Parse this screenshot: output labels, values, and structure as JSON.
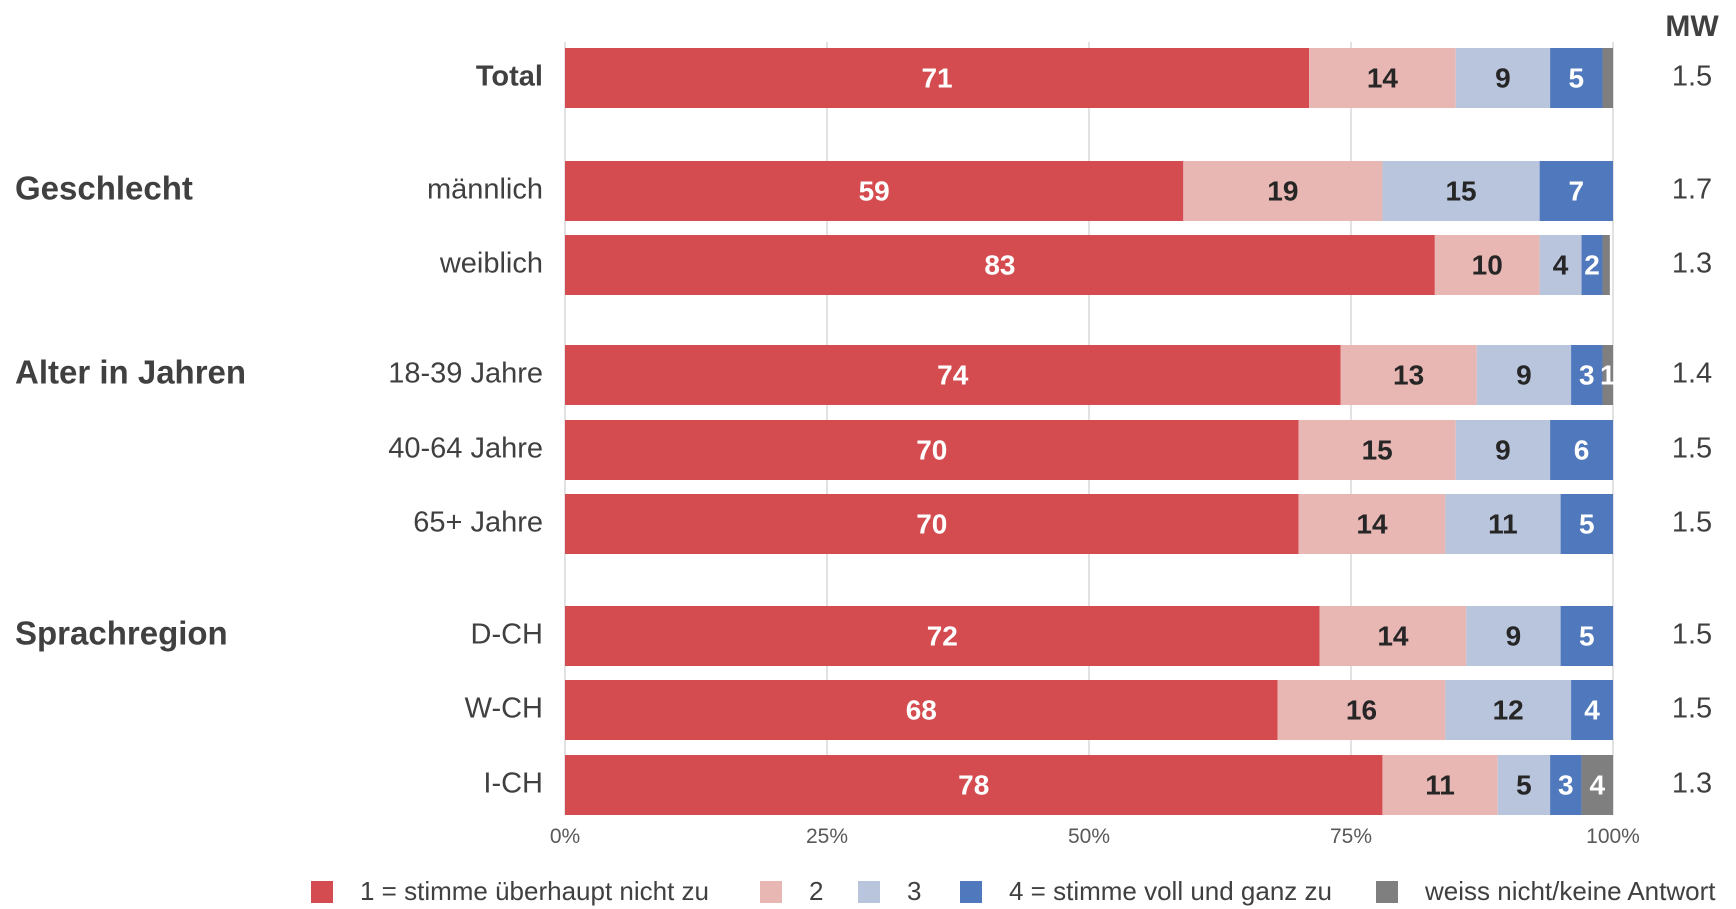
{
  "chart_data": {
    "type": "bar",
    "orientation": "horizontal",
    "stacked": true,
    "xlim": [
      0,
      100
    ],
    "xticks": [
      "0%",
      "25%",
      "50%",
      "75%",
      "100%"
    ],
    "grid": true,
    "legend_position": "bottom",
    "mw_header": "MW",
    "series": [
      {
        "name": "1 = stimme überhaupt nicht zu",
        "color": "#d44c4f",
        "text_color": "#ffffff"
      },
      {
        "name": "2",
        "color": "#e8b6b3",
        "text_color": "#262626"
      },
      {
        "name": "3",
        "color": "#b9c4dd",
        "text_color": "#262626"
      },
      {
        "name": "4 = stimme voll und ganz zu",
        "color": "#4f78bd",
        "text_color": "#ffffff"
      },
      {
        "name": "weiss nicht/keine Antwort",
        "color": "#7f7f7f",
        "text_color": "#ffffff"
      }
    ],
    "groups": [
      {
        "label": "",
        "rows": [
          {
            "label": "Total",
            "bold": true,
            "values": [
              71,
              14,
              9,
              5,
              1
            ],
            "labels": [
              "71",
              "14",
              "9",
              "5",
              ""
            ],
            "mw": "1.5"
          }
        ]
      },
      {
        "label": "Geschlecht",
        "rows": [
          {
            "label": "männlich",
            "values": [
              59,
              19,
              15,
              7,
              0.5
            ],
            "labels": [
              "59",
              "19",
              "15",
              "7",
              ""
            ],
            "mw": "1.7"
          },
          {
            "label": "weiblich",
            "values": [
              83,
              10,
              4,
              2,
              0.7
            ],
            "labels": [
              "83",
              "10",
              "4",
              "2",
              ""
            ],
            "mw": "1.3"
          }
        ]
      },
      {
        "label": "Alter in Jahren",
        "rows": [
          {
            "label": "18-39 Jahre",
            "values": [
              74,
              13,
              9,
              3,
              1
            ],
            "labels": [
              "74",
              "13",
              "9",
              "3",
              "1"
            ],
            "mw": "1.4"
          },
          {
            "label": "40-64 Jahre",
            "values": [
              70,
              15,
              9,
              6,
              0.6
            ],
            "labels": [
              "70",
              "15",
              "9",
              "6",
              ""
            ],
            "mw": "1.5"
          },
          {
            "label": "65+ Jahre",
            "values": [
              70,
              14,
              11,
              5,
              0
            ],
            "labels": [
              "70",
              "14",
              "11",
              "5",
              ""
            ],
            "mw": "1.5"
          }
        ]
      },
      {
        "label": "Sprachregion",
        "rows": [
          {
            "label": "D-CH",
            "values": [
              72,
              14,
              9,
              5,
              0.6
            ],
            "labels": [
              "72",
              "14",
              "9",
              "5",
              ""
            ],
            "mw": "1.5"
          },
          {
            "label": "W-CH",
            "values": [
              68,
              16,
              12,
              4,
              0.8
            ],
            "labels": [
              "68",
              "16",
              "12",
              "4",
              ""
            ],
            "mw": "1.5"
          },
          {
            "label": "I-CH",
            "values": [
              78,
              11,
              5,
              3,
              4
            ],
            "labels": [
              "78",
              "11",
              "5",
              "3",
              "4"
            ],
            "mw": "1.3"
          }
        ]
      }
    ]
  }
}
